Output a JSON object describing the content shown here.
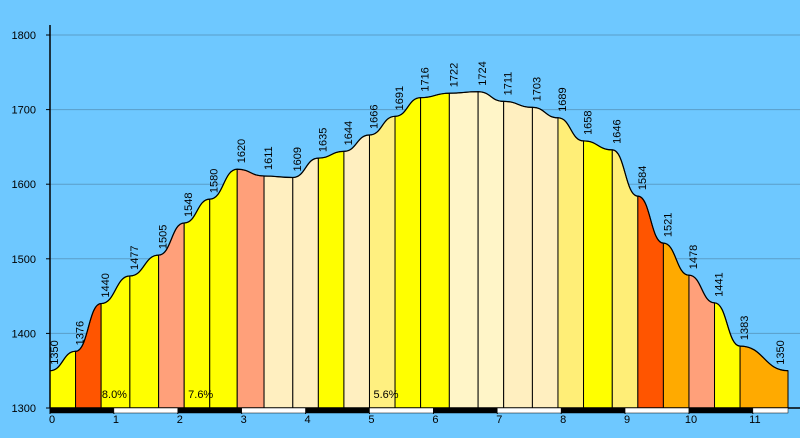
{
  "chart_data": {
    "type": "area",
    "title": "",
    "xlabel": "",
    "ylabel": "",
    "xlim": [
      0,
      11.55
    ],
    "ylim": [
      1300,
      1800
    ],
    "y_ticks": [
      1300,
      1400,
      1500,
      1600,
      1700,
      1800
    ],
    "x_ticks": [
      0,
      1,
      2,
      3,
      4,
      5,
      6,
      7,
      8,
      9,
      10,
      11
    ],
    "grid": "horizontal",
    "points": [
      {
        "x": 0.0,
        "y": 1350,
        "label": "1350"
      },
      {
        "x": 0.4,
        "y": 1376,
        "label": "1376"
      },
      {
        "x": 0.8,
        "y": 1440,
        "label": "1440"
      },
      {
        "x": 1.25,
        "y": 1477,
        "label": "1477"
      },
      {
        "x": 1.7,
        "y": 1505,
        "label": "1505"
      },
      {
        "x": 2.1,
        "y": 1548,
        "label": "1548"
      },
      {
        "x": 2.5,
        "y": 1580,
        "label": "1580"
      },
      {
        "x": 2.93,
        "y": 1620,
        "label": "1620"
      },
      {
        "x": 3.35,
        "y": 1611,
        "label": "1611"
      },
      {
        "x": 3.8,
        "y": 1609,
        "label": "1609"
      },
      {
        "x": 4.2,
        "y": 1635,
        "label": "1635"
      },
      {
        "x": 4.6,
        "y": 1644,
        "label": "1644"
      },
      {
        "x": 5.0,
        "y": 1666,
        "label": "1666"
      },
      {
        "x": 5.4,
        "y": 1691,
        "label": "1691"
      },
      {
        "x": 5.8,
        "y": 1716,
        "label": "1716"
      },
      {
        "x": 6.25,
        "y": 1722,
        "label": "1722"
      },
      {
        "x": 6.7,
        "y": 1724,
        "label": "1724"
      },
      {
        "x": 7.1,
        "y": 1711,
        "label": "1711"
      },
      {
        "x": 7.55,
        "y": 1703,
        "label": "1703"
      },
      {
        "x": 7.95,
        "y": 1689,
        "label": "1689"
      },
      {
        "x": 8.35,
        "y": 1658,
        "label": "1658"
      },
      {
        "x": 8.8,
        "y": 1646,
        "label": "1646"
      },
      {
        "x": 9.2,
        "y": 1584,
        "label": "1584"
      },
      {
        "x": 9.6,
        "y": 1521,
        "label": "1521"
      },
      {
        "x": 10.0,
        "y": 1478,
        "label": "1478"
      },
      {
        "x": 10.4,
        "y": 1441,
        "label": "1441"
      },
      {
        "x": 10.8,
        "y": 1383,
        "label": "1383"
      },
      {
        "x": 11.55,
        "y": 1350,
        "label": "1350"
      }
    ],
    "segment_colors": [
      "#ffff00",
      "#ff5500",
      "#ffff00",
      "#ffff00",
      "#ffa07a",
      "#ffff00",
      "#ffff00",
      "#ffa07a",
      "#ffefc0",
      "#ffefc0",
      "#ffff00",
      "#ffefc0",
      "#fff080",
      "#ffff00",
      "#ffff00",
      "#fff5c8",
      "#fff5c8",
      "#ffefc0",
      "#ffefc0",
      "#ffee77",
      "#ffff00",
      "#ffee77",
      "#ff5500",
      "#ffaa00",
      "#ffa07a",
      "#ffff00",
      "#ffaa00",
      "#ffff00"
    ],
    "gradient_labels": [
      {
        "x": 1.0,
        "text": "8.0%"
      },
      {
        "x": 2.35,
        "text": "7.6%"
      },
      {
        "x": 5.25,
        "text": "5.6%"
      }
    ]
  }
}
